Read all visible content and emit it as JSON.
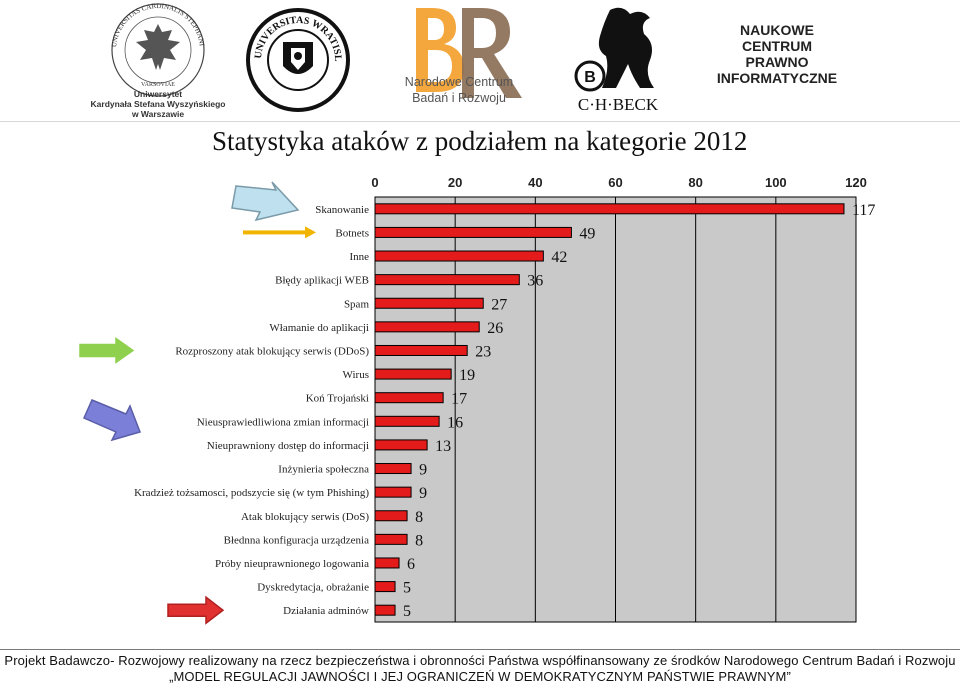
{
  "logos": {
    "uksw": {
      "ring_text": "UNIVERSITAS CARDINALIS STEPHANI WYSZYŃSKI",
      "motto": "VARSOVIAE",
      "caption_lines": [
        "Uniwersytet",
        "Kardynała Stefana Wyszyńskiego",
        "w Warszawie"
      ]
    },
    "uwr": {
      "ring_text": "UNIVERSITAS WRATISLAVIENSIS"
    },
    "ncbr": {
      "caption_lines": [
        "Narodowe Centrum",
        "Badań i Rozwoju"
      ]
    },
    "beck": {
      "text": "C·H·BECK"
    },
    "ncpi": {
      "lines": [
        "NAUKOWE",
        "CENTRUM",
        "PRAWNO",
        "INFORMATYCZNE"
      ]
    }
  },
  "title": "Statystyka ataków z podziałem na kategorie 2012",
  "colors": {
    "bar": "#e41b1b",
    "plot_bg": "#c9c9c9",
    "grid": "#000000",
    "value_label": "#111111"
  },
  "arrows": [
    {
      "row": "Skanowanie",
      "color": "#bfe0ee",
      "outline": "#7a9aa8"
    },
    {
      "row": "Botnets",
      "color": "#f1b400",
      "outline": "#f1b400"
    },
    {
      "row": "Rozproszony atak blokujący serwis (DDoS)",
      "color": "#8fd14f",
      "outline": "#8fd14f"
    },
    {
      "row": "Nieusprawiedliwiona zmian informacji",
      "color": "#7b7fd8",
      "outline": "#5a5ea8"
    },
    {
      "row": "Działania adminów",
      "color": "#e03030",
      "outline": "#b02020"
    }
  ],
  "chart_data": {
    "type": "bar",
    "orientation": "horizontal",
    "title": "Statystyka ataków z podziałem na kategorie 2012",
    "xlabel": "",
    "ylabel": "",
    "xlim": [
      0,
      120
    ],
    "xticks": [
      0,
      20,
      40,
      60,
      80,
      100,
      120
    ],
    "x_axis_position": "top",
    "grid": "vertical",
    "categories": [
      "Skanowanie",
      "Botnets",
      "Inne",
      "Błędy aplikacji WEB",
      "Spam",
      "Włamanie do aplikacji",
      "Rozproszony atak blokujący serwis (DDoS)",
      "Wirus",
      "Koń Trojański",
      "Nieusprawiedliwiona zmian informacji",
      "Nieuprawniony dostęp do informacji",
      "Inżynieria społeczna",
      "Kradzież tożsamosci, podszycie się (w tym Phishing)",
      "Atak blokujący serwis (DoS)",
      "Błednna konfiguracja urządzenia",
      "Próby nieuprawnionego logowania",
      "Dyskredytacja, obrażanie",
      "Działania adminów"
    ],
    "values": [
      117,
      49,
      42,
      36,
      27,
      26,
      23,
      19,
      17,
      16,
      13,
      9,
      9,
      8,
      8,
      6,
      5,
      5
    ]
  },
  "footer": {
    "line1": "Projekt Badawczo- Rozwojowy realizowany na rzecz bezpieczeństwa i obronności Państwa współfinansowany ze środków Narodowego Centrum Badań i Rozwoju",
    "line2": "„MODEL REGULACJI JAWNOŚCI I JEJ OGRANICZEŃ W DEMOKRATYCZNYM PAŃSTWIE PRAWNYM”"
  }
}
